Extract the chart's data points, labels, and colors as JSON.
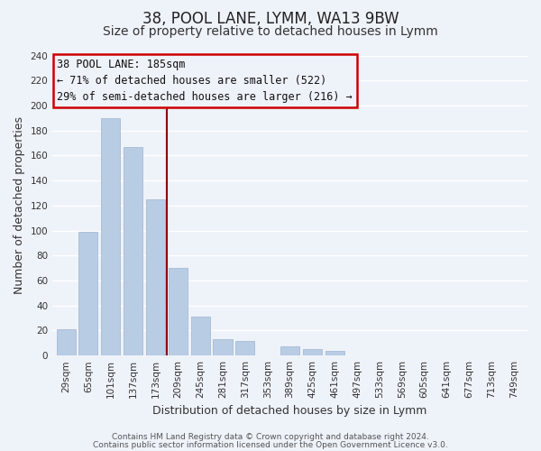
{
  "title": "38, POOL LANE, LYMM, WA13 9BW",
  "subtitle": "Size of property relative to detached houses in Lymm",
  "xlabel": "Distribution of detached houses by size in Lymm",
  "ylabel": "Number of detached properties",
  "bar_labels": [
    "29sqm",
    "65sqm",
    "101sqm",
    "137sqm",
    "173sqm",
    "209sqm",
    "245sqm",
    "281sqm",
    "317sqm",
    "353sqm",
    "389sqm",
    "425sqm",
    "461sqm",
    "497sqm",
    "533sqm",
    "569sqm",
    "605sqm",
    "641sqm",
    "677sqm",
    "713sqm",
    "749sqm"
  ],
  "bar_values": [
    21,
    99,
    190,
    167,
    125,
    70,
    31,
    13,
    12,
    0,
    7,
    5,
    4,
    0,
    0,
    0,
    0,
    0,
    0,
    0,
    0
  ],
  "bar_color": "#b8cce4",
  "bar_edge_color": "#a8bcd4",
  "vline_color": "#8b0000",
  "annotation_title": "38 POOL LANE: 185sqm",
  "annotation_line1": "← 71% of detached houses are smaller (522)",
  "annotation_line2": "29% of semi-detached houses are larger (216) →",
  "annotation_box_edgecolor": "#cc0000",
  "ylim": [
    0,
    240
  ],
  "yticks": [
    0,
    20,
    40,
    60,
    80,
    100,
    120,
    140,
    160,
    180,
    200,
    220,
    240
  ],
  "footer1": "Contains HM Land Registry data © Crown copyright and database right 2024.",
  "footer2": "Contains public sector information licensed under the Open Government Licence v3.0.",
  "bg_color": "#eef2f9",
  "grid_color": "white",
  "title_fontsize": 12,
  "subtitle_fontsize": 10,
  "axis_label_fontsize": 9,
  "tick_fontsize": 7.5,
  "annotation_fontsize": 8.5,
  "footer_fontsize": 6.5
}
